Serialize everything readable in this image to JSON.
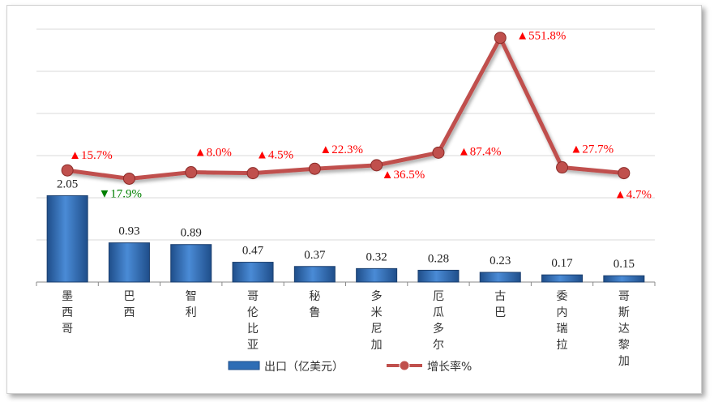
{
  "chart_data": {
    "type": "bar",
    "categories": [
      "墨西哥",
      "巴西",
      "智利",
      "哥伦比亚",
      "秘鲁",
      "多米尼加",
      "厄瓜多尔",
      "古巴",
      "委内瑞拉",
      "哥斯达黎加"
    ],
    "series": [
      {
        "name": "出口（亿美元）",
        "type": "bar",
        "values": [
          2.05,
          0.93,
          0.89,
          0.47,
          0.37,
          0.32,
          0.28,
          0.23,
          0.17,
          0.15
        ],
        "labels": [
          "2.05",
          "0.93",
          "0.89",
          "0.47",
          "0.37",
          "0.32",
          "0.28",
          "0.23",
          "0.17",
          "0.15"
        ],
        "color": "#2E6DB5"
      },
      {
        "name": "增长率%",
        "type": "line",
        "values": [
          15.7,
          -17.9,
          8.0,
          4.5,
          22.3,
          36.5,
          87.4,
          551.8,
          27.7,
          4.7
        ],
        "labels": [
          "15.7%",
          "17.9%",
          "8.0%",
          "4.5%",
          "22.3%",
          "36.5%",
          "87.4%",
          "551.8%",
          "27.7%",
          "4.7%"
        ],
        "directions": [
          "up",
          "down",
          "up",
          "up",
          "up",
          "up",
          "up",
          "up",
          "up",
          "up"
        ],
        "color": "#C0504D"
      }
    ],
    "legend": [
      "出口（亿美元）",
      "增长率%"
    ],
    "legend_position": "bottom",
    "grid": true,
    "colors": {
      "up": "#FF0000",
      "down": "#008000",
      "bar": "#2E6DB5",
      "line": "#C0504D"
    }
  }
}
